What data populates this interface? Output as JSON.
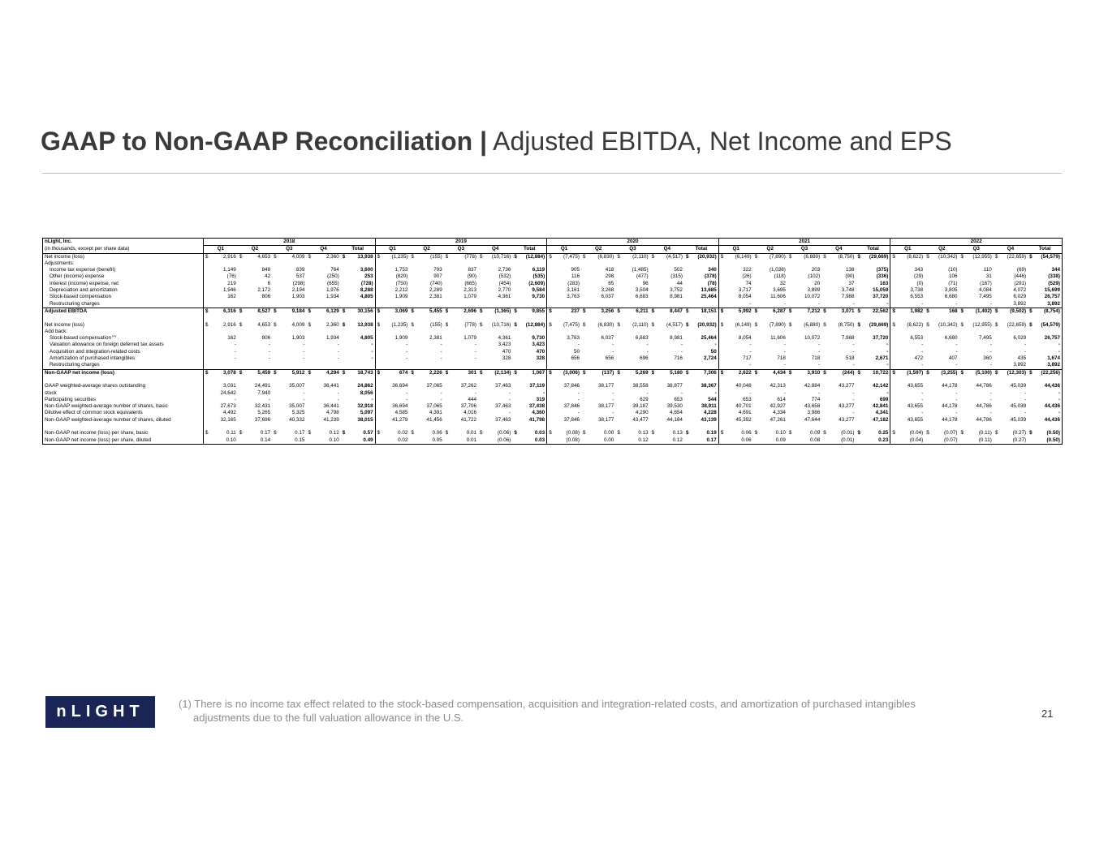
{
  "header": {
    "title_bold": "GAAP to Non-GAAP Reconciliation |",
    "title_rest": "Adjusted EBITDA, Net Income and EPS"
  },
  "table": {
    "company": "nLight, Inc.",
    "units": "(in thousands, except per share data)",
    "years": [
      "2018",
      "2019",
      "2020",
      "2021",
      "2022"
    ],
    "quarters": [
      "Q1",
      "Q2",
      "Q3",
      "Q4",
      "Total"
    ],
    "rows": [
      {
        "label": "Net income (loss)",
        "currency": "$",
        "values": [
          "2,916",
          "4,653",
          "4,009",
          "2,360",
          "13,938",
          "(1,235)",
          "(155)",
          "(778)",
          "(10,716)",
          "(12,884)",
          "(7,475)",
          "(6,830)",
          "(2,110)",
          "(4,517)",
          "(20,932)",
          "(6,149)",
          "(7,890)",
          "(6,880)",
          "(8,750)",
          "(29,669)",
          "(8,622)",
          "(10,342)",
          "(12,955)",
          "(22,659)",
          "(54,579)"
        ]
      },
      {
        "label": "Adjustments:"
      },
      {
        "label": "Income tax expense (benefit)",
        "indent": true,
        "values": [
          "1,149",
          "848",
          "839",
          "764",
          "3,600",
          "1,753",
          "793",
          "837",
          "2,736",
          "6,119",
          "905",
          "418",
          "(1,485)",
          "502",
          "340",
          "322",
          "(1,038)",
          "203",
          "138",
          "(375)",
          "343",
          "(10)",
          "110",
          "(69)",
          "344"
        ]
      },
      {
        "label": "Other (income) expense",
        "indent": true,
        "values": [
          "(76)",
          "42",
          "537",
          "(250)",
          "253",
          "(820)",
          "907",
          "(90)",
          "(532)",
          "(535)",
          "116",
          "298",
          "(477)",
          "(315)",
          "(378)",
          "(26)",
          "(118)",
          "(102)",
          "(90)",
          "(336)",
          "(29)",
          "106",
          "31",
          "(446)",
          "(338)"
        ]
      },
      {
        "label": "Interest (income) expense, net",
        "indent": true,
        "values": [
          "219",
          "6",
          "(298)",
          "(655)",
          "(728)",
          "(750)",
          "(740)",
          "(665)",
          "(454)",
          "(2,609)",
          "(283)",
          "65",
          "96",
          "44",
          "(78)",
          "74",
          "32",
          "20",
          "37",
          "163",
          "(0)",
          "(71)",
          "(167)",
          "(291)",
          "(529)"
        ]
      },
      {
        "label": "Depreciation and amortization",
        "indent": true,
        "values": [
          "1,946",
          "2,172",
          "2,194",
          "1,976",
          "8,288",
          "2,212",
          "2,289",
          "2,313",
          "2,770",
          "9,584",
          "3,161",
          "3,268",
          "3,504",
          "3,752",
          "13,685",
          "3,717",
          "3,695",
          "3,899",
          "3,748",
          "15,059",
          "3,738",
          "3,805",
          "4,084",
          "4,072",
          "15,699"
        ]
      },
      {
        "label": "Stock-based compensation",
        "indent": true,
        "values": [
          "162",
          "806",
          "1,903",
          "1,934",
          "4,805",
          "1,909",
          "2,381",
          "1,079",
          "4,361",
          "9,730",
          "3,763",
          "6,037",
          "6,683",
          "8,981",
          "25,464",
          "8,054",
          "11,606",
          "10,072",
          "7,988",
          "37,720",
          "6,553",
          "6,680",
          "7,495",
          "6,029",
          "26,757"
        ]
      },
      {
        "label": "Restructuring charges",
        "indent": true,
        "values": [
          null,
          null,
          null,
          null,
          null,
          null,
          null,
          null,
          null,
          null,
          null,
          null,
          null,
          null,
          null,
          "-",
          "-",
          "-",
          "-",
          "-",
          "-",
          "-",
          "-",
          "3,892",
          "3,892"
        ]
      },
      {
        "label": "Adjusted EBITDA",
        "bold": true,
        "currency": "$",
        "values": [
          "6,316",
          "8,527",
          "9,184",
          "6,129",
          "30,156",
          "3,069",
          "5,455",
          "2,696",
          "(1,365)",
          "9,855",
          "237",
          "3,256",
          "6,211",
          "8,447",
          "18,151",
          "5,992",
          "6,287",
          "7,212",
          "3,071",
          "22,562",
          "1,982",
          "168",
          "(1,402)",
          "(9,502)",
          "(8,754)"
        ]
      },
      null,
      {
        "label": "Net income (loss)",
        "currency": "$",
        "values": [
          "2,916",
          "4,653",
          "4,009",
          "2,360",
          "13,938",
          "(1,235)",
          "(155)",
          "(778)",
          "(10,716)",
          "(12,884)",
          "(7,475)",
          "(6,830)",
          "(2,110)",
          "(4,517)",
          "(20,932)",
          "(6,149)",
          "(7,890)",
          "(6,880)",
          "(8,750)",
          "(29,669)",
          "(8,622)",
          "(10,342)",
          "(12,955)",
          "(22,659)",
          "(54,579)"
        ]
      },
      {
        "label": "Add back:"
      },
      {
        "label": "Stock-based compensation",
        "sup": "(1)",
        "indent": true,
        "values": [
          "162",
          "806",
          "1,903",
          "1,934",
          "4,805",
          "1,909",
          "2,381",
          "1,079",
          "4,361",
          "9,730",
          "3,763",
          "6,037",
          "6,683",
          "8,981",
          "25,464",
          "8,054",
          "11,606",
          "10,072",
          "7,988",
          "37,720",
          "6,553",
          "6,680",
          "7,495",
          "6,029",
          "26,757"
        ]
      },
      {
        "label": "Valuation allowance on foreign deferred tax assets",
        "indent": true,
        "values": [
          "-",
          "-",
          "-",
          "-",
          "-",
          "-",
          "-",
          "-",
          "3,423",
          "3,423",
          "-",
          "-",
          "-",
          "-",
          "-",
          "-",
          "-",
          "-",
          "-",
          "-",
          "-",
          "-",
          "-",
          "-",
          "-"
        ]
      },
      {
        "label": "Acquisition and integration-related costs",
        "indent": true,
        "values": [
          "-",
          "-",
          "-",
          "-",
          "-",
          "-",
          "-",
          "-",
          "470",
          "470",
          "50",
          "-",
          "-",
          "-",
          "50",
          "-",
          "-",
          "-",
          "-",
          "-",
          "-",
          "-",
          "-",
          "-",
          "-"
        ]
      },
      {
        "label": "Amortization of purchased intangibles",
        "indent": true,
        "values": [
          "-",
          "-",
          "-",
          "-",
          "-",
          "-",
          "-",
          "-",
          "328",
          "328",
          "656",
          "656",
          "696",
          "716",
          "2,724",
          "717",
          "718",
          "718",
          "518",
          "2,671",
          "472",
          "407",
          "360",
          "435",
          "1,674"
        ]
      },
      {
        "label": "Restructuring charges",
        "indent": true,
        "values": [
          null,
          null,
          null,
          null,
          null,
          null,
          null,
          null,
          null,
          null,
          null,
          null,
          null,
          null,
          null,
          "-",
          "-",
          "-",
          "-",
          "-",
          "-",
          "-",
          "-",
          "3,892",
          "3,892"
        ]
      },
      {
        "label": "Non-GAAP net income (loss)",
        "bold": true,
        "currency": "$",
        "values": [
          "3,078",
          "5,459",
          "5,912",
          "4,294",
          "18,743",
          "674",
          "2,226",
          "301",
          "(2,134)",
          "1,067",
          "(3,006)",
          "(137)",
          "5,269",
          "5,180",
          "7,306",
          "2,622",
          "4,434",
          "3,910",
          "(244)",
          "10,722",
          "(1,597)",
          "(3,255)",
          "(5,100)",
          "(12,303)",
          "(22,256)"
        ]
      },
      null,
      {
        "label": "GAAP weighted-average shares outstanding",
        "values": [
          "3,031",
          "24,491",
          "35,007",
          "36,441",
          "24,862",
          "36,694",
          "37,065",
          "37,262",
          "37,463",
          "37,119",
          "37,846",
          "38,177",
          "38,558",
          "38,877",
          "38,367",
          "40,048",
          "42,313",
          "42,884",
          "43,277",
          "42,142",
          "43,655",
          "44,178",
          "44,786",
          "45,039",
          "44,436"
        ]
      },
      {
        "label": "stock",
        "values": [
          "24,642",
          "7,940",
          "-",
          "-",
          "8,056",
          "-",
          "-",
          "-",
          "-",
          "-",
          "-",
          "-",
          "-",
          "-",
          "-",
          "-",
          "-",
          "-",
          "-",
          "-",
          "-",
          "-",
          "-",
          "-",
          "-"
        ]
      },
      {
        "label": "Participating securities",
        "values": [
          "-",
          "-",
          "-",
          "-",
          "-",
          "-",
          "-",
          "444",
          "-",
          "319",
          "-",
          "-",
          "629",
          "653",
          "544",
          "653",
          "614",
          "774",
          "-",
          "699",
          "-",
          "-",
          "-",
          "-",
          "-"
        ]
      },
      {
        "label": "Non-GAAP weighted-average number of shares, basic",
        "values": [
          "27,673",
          "32,431",
          "35,007",
          "36,441",
          "32,918",
          "36,694",
          "37,065",
          "37,706",
          "37,463",
          "37,438",
          "37,846",
          "38,177",
          "39,187",
          "39,530",
          "38,911",
          "40,701",
          "42,927",
          "43,658",
          "43,277",
          "42,841",
          "43,655",
          "44,178",
          "44,786",
          "45,039",
          "44,436"
        ]
      },
      {
        "label": "Dilutive effect of common stock equivalents",
        "values": [
          "4,492",
          "5,265",
          "5,325",
          "4,798",
          "5,097",
          "4,585",
          "4,391",
          "4,016",
          "-",
          "4,360",
          "-",
          "-",
          "4,290",
          "4,654",
          "4,228",
          "4,691",
          "4,334",
          "3,986",
          "-",
          "4,341",
          "-",
          "-",
          "-",
          "-",
          "-"
        ]
      },
      {
        "label": "Non-GAAP weighted-average number of shares, diluted",
        "values": [
          "32,165",
          "37,696",
          "40,332",
          "41,239",
          "38,015",
          "41,279",
          "41,456",
          "41,722",
          "37,463",
          "41,798",
          "37,846",
          "38,177",
          "43,477",
          "44,184",
          "43,139",
          "45,392",
          "47,261",
          "47,644",
          "43,277",
          "47,182",
          "43,655",
          "44,178",
          "44,786",
          "45,039",
          "44,436"
        ]
      },
      null,
      {
        "label": "Non-GAAP net income (loss) per share, basic",
        "currency": "$",
        "values": [
          "0.11",
          "0.17",
          "0.17",
          "0.12",
          "0.57",
          "0.02",
          "0.06",
          "0.01",
          "(0.06)",
          "0.03",
          "(0.08)",
          "0.00",
          "0.13",
          "0.13",
          "0.19",
          "0.06",
          "0.10",
          "0.09",
          "(0.01)",
          "0.25",
          "(0.04)",
          "(0.07)",
          "(0.11)",
          "(0.27)",
          "(0.50)"
        ]
      },
      {
        "label": "Non-GAAP net income (loss) per share, diluted",
        "values": [
          "0.10",
          "0.14",
          "0.15",
          "0.10",
          "0.49",
          "0.02",
          "0.05",
          "0.01",
          "(0.06)",
          "0.03",
          "(0.08)",
          "0.00",
          "0.12",
          "0.12",
          "0.17",
          "0.06",
          "0.09",
          "0.08",
          "(0.01)",
          "0.23",
          "(0.04)",
          "(0.07)",
          "(0.11)",
          "(0.27)",
          "(0.50)"
        ]
      }
    ]
  },
  "footer": {
    "logo": "nLIGHT",
    "footnote_1": "(1) There is no income tax effect related to the stock-based compensation, acquisition and integration-related costs, and amortization of purchased intangibles",
    "footnote_2": "adjustments due to the full valuation allowance in the U.S.",
    "page": "21"
  }
}
